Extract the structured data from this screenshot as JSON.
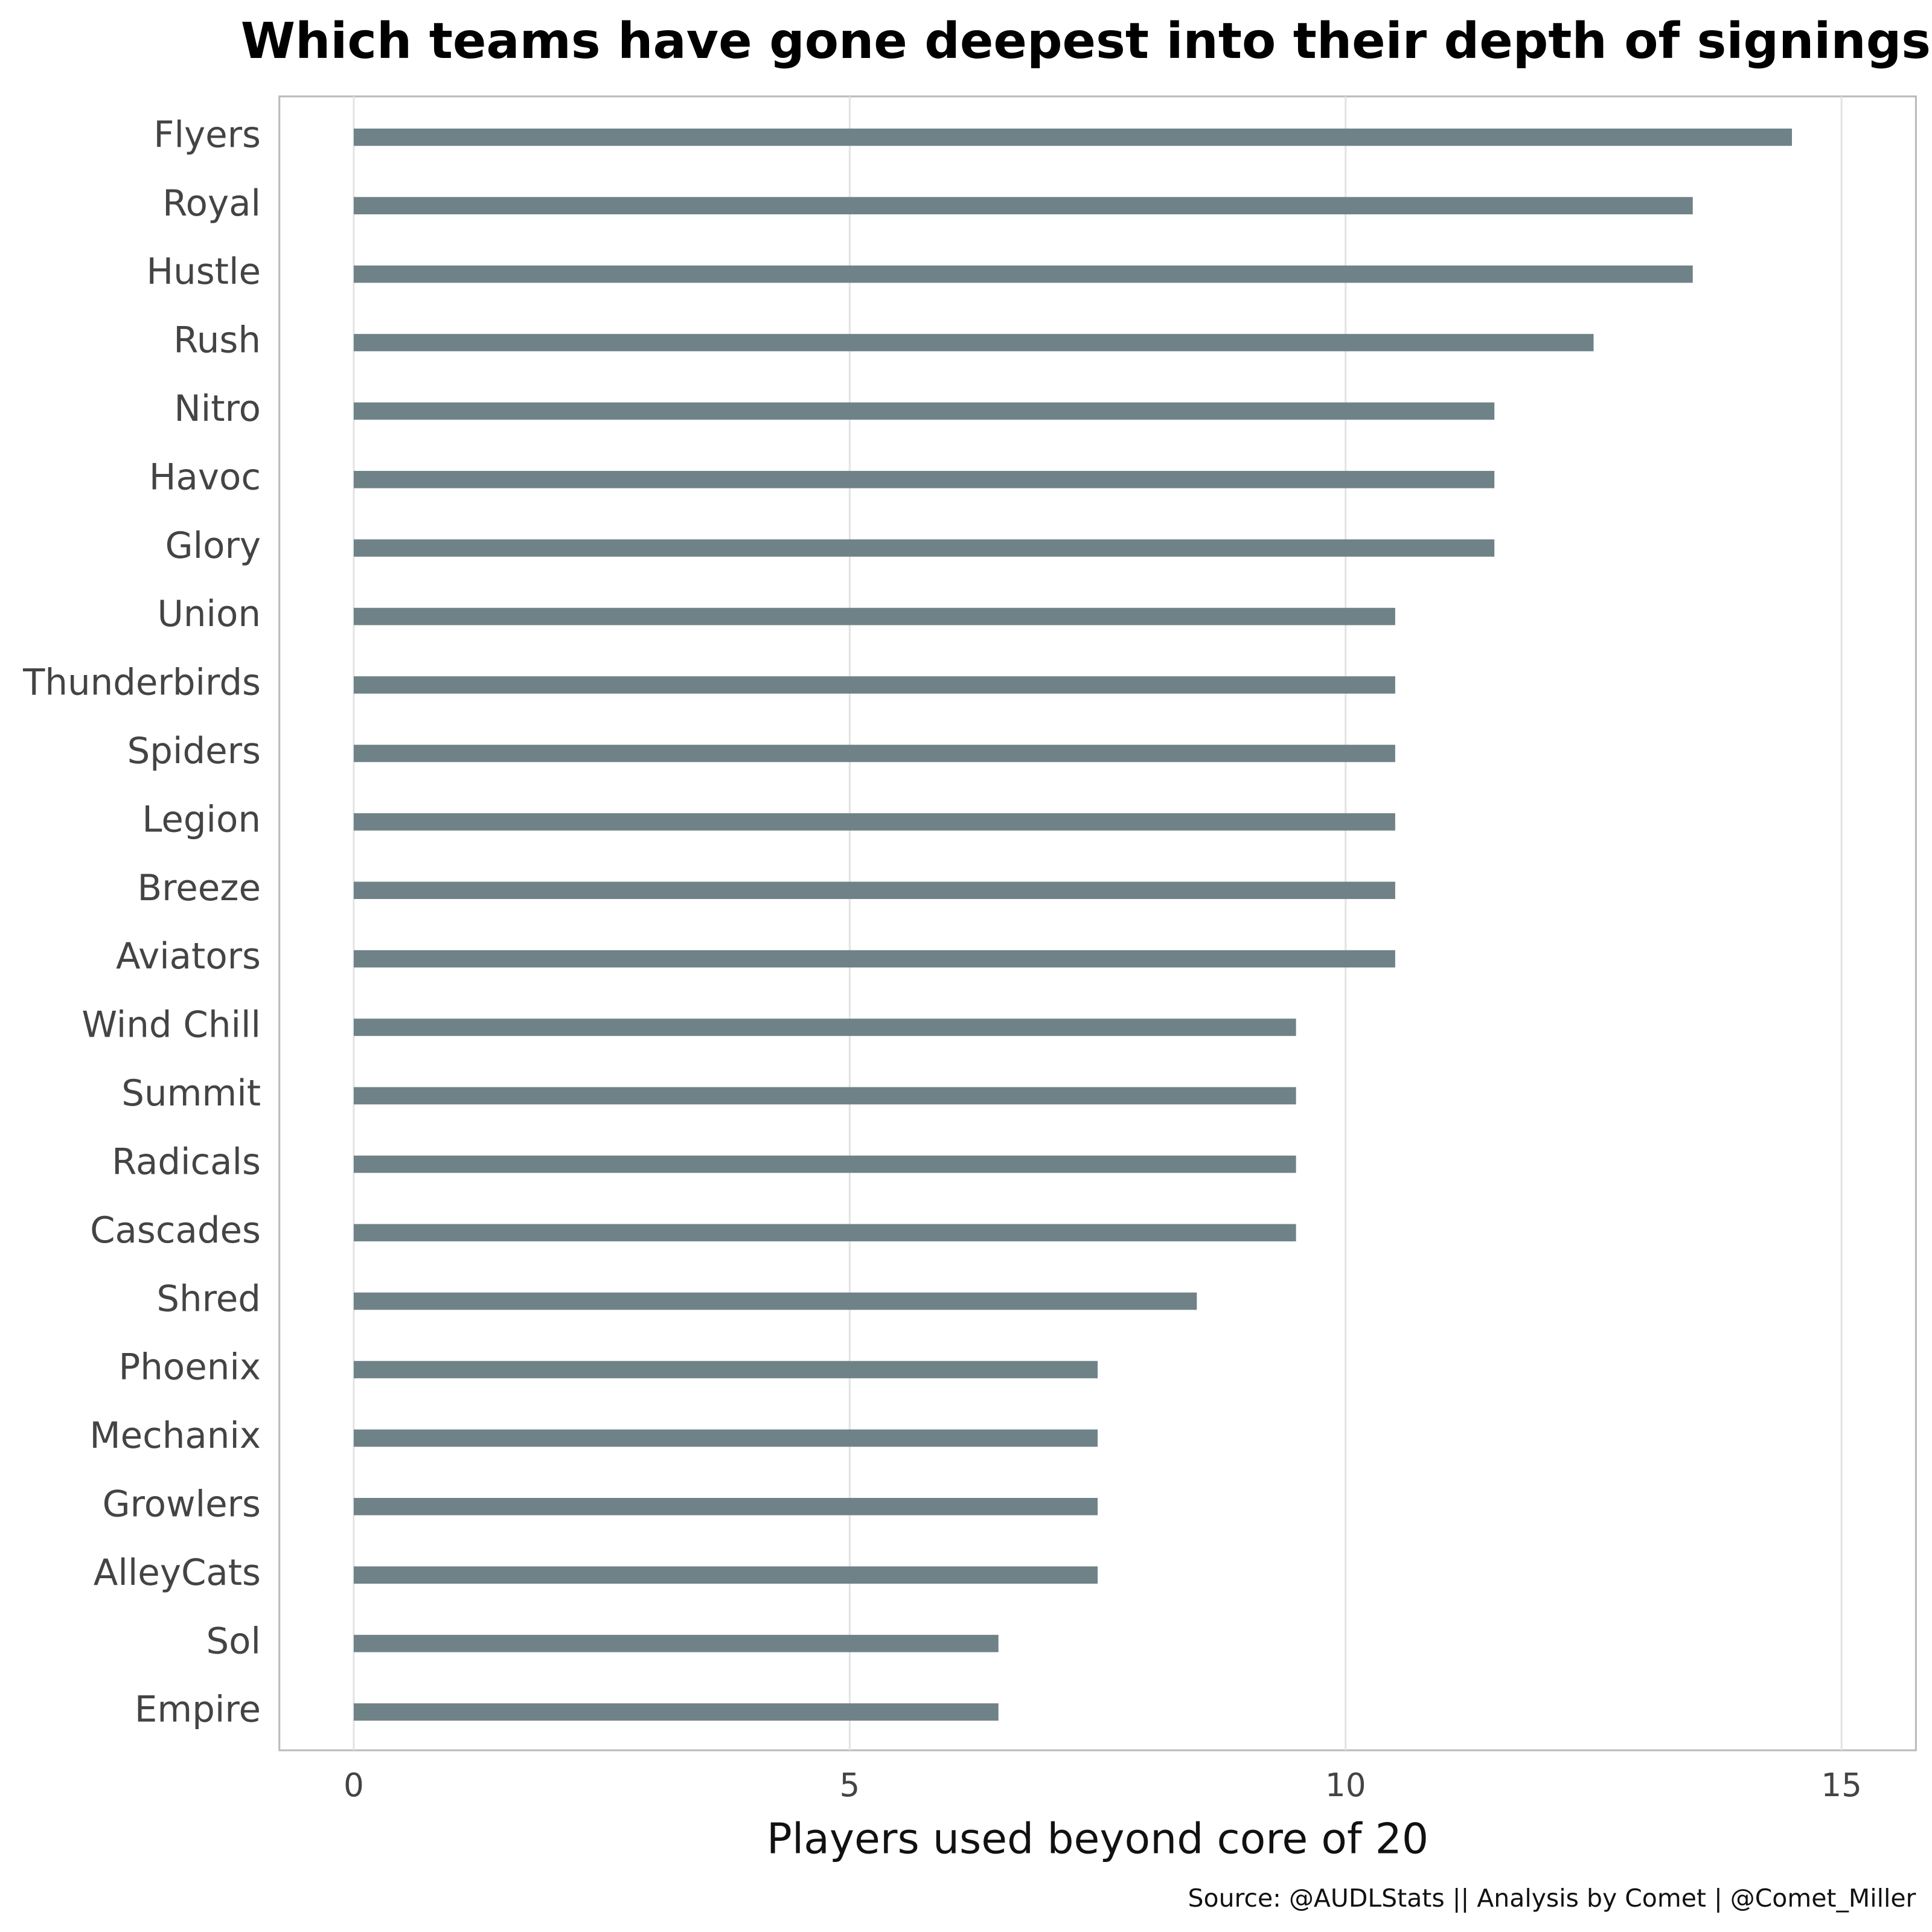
{
  "chart_data": {
    "type": "bar",
    "orientation": "horizontal",
    "title": "Which teams have gone deepest into their depth of signings?",
    "x_label": "Players used beyond core of 20",
    "caption": "Source: @AUDLStats || Analysis by Comet | @Comet_Miller",
    "categories": [
      "Flyers",
      "Royal",
      "Hustle",
      "Rush",
      "Nitro",
      "Havoc",
      "Glory",
      "Union",
      "Thunderbirds",
      "Spiders",
      "Legion",
      "Breeze",
      "Aviators",
      "Wind Chill",
      "Summit",
      "Radicals",
      "Cascades",
      "Shred",
      "Phoenix",
      "Mechanix",
      "Growlers",
      "AlleyCats",
      "Sol",
      "Empire"
    ],
    "values": [
      14.5,
      13.5,
      13.5,
      12.5,
      11.5,
      11.5,
      11.5,
      10.5,
      10.5,
      10.5,
      10.5,
      10.5,
      10.5,
      9.5,
      9.5,
      9.5,
      9.5,
      8.5,
      7.5,
      7.5,
      7.5,
      7.5,
      6.5,
      6.5
    ],
    "color": "#6f8287",
    "xlim": [
      -0.75,
      15.75
    ],
    "xticks": [
      0,
      5,
      10,
      15
    ],
    "grid": true
  }
}
